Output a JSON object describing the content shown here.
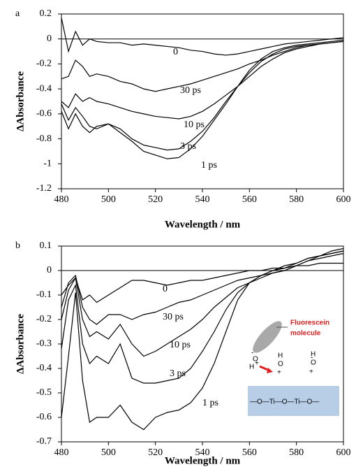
{
  "chart_data": [
    {
      "type": "line",
      "panel_label": "a",
      "x_label": "Wavelength / nm",
      "y_label": "ΔAbsorbance",
      "xlim": [
        480,
        600
      ],
      "xticks": [
        480,
        500,
        520,
        540,
        560,
        580,
        600
      ],
      "ylim": [
        -1.2,
        0.2
      ],
      "yticks": [
        0.2,
        0,
        -0.2,
        -0.4,
        -0.6,
        -0.8,
        -1,
        -1.2
      ],
      "x": [
        480,
        483,
        486,
        489,
        492,
        495,
        500,
        505,
        510,
        515,
        520,
        525,
        530,
        535,
        540,
        545,
        550,
        555,
        560,
        565,
        570,
        575,
        580,
        585,
        590,
        595,
        600
      ],
      "series": [
        {
          "name": "0",
          "color": "#000000",
          "values": [
            0.17,
            -0.1,
            0.06,
            -0.05,
            0,
            -0.02,
            -0.03,
            -0.03,
            -0.05,
            -0.04,
            -0.05,
            -0.06,
            -0.07,
            -0.09,
            -0.1,
            -0.12,
            -0.13,
            -0.12,
            -0.1,
            -0.08,
            -0.06,
            -0.04,
            -0.03,
            -0.02,
            -0.01,
            0,
            0.01
          ]
        },
        {
          "name": "30 ps",
          "color": "#000000",
          "values": [
            -0.32,
            -0.3,
            -0.17,
            -0.22,
            -0.3,
            -0.28,
            -0.3,
            -0.34,
            -0.36,
            -0.4,
            -0.42,
            -0.4,
            -0.38,
            -0.36,
            -0.33,
            -0.3,
            -0.27,
            -0.24,
            -0.2,
            -0.17,
            -0.13,
            -0.1,
            -0.07,
            -0.05,
            -0.04,
            -0.03,
            -0.02
          ]
        },
        {
          "name": "10 ps",
          "color": "#000000",
          "values": [
            -0.5,
            -0.55,
            -0.44,
            -0.5,
            -0.47,
            -0.5,
            -0.52,
            -0.55,
            -0.58,
            -0.6,
            -0.62,
            -0.63,
            -0.64,
            -0.62,
            -0.58,
            -0.52,
            -0.45,
            -0.38,
            -0.3,
            -0.22,
            -0.16,
            -0.11,
            -0.08,
            -0.06,
            -0.04,
            -0.03,
            -0.02
          ]
        },
        {
          "name": "3 ps",
          "color": "#000000",
          "values": [
            -0.52,
            -0.65,
            -0.55,
            -0.62,
            -0.7,
            -0.72,
            -0.68,
            -0.72,
            -0.8,
            -0.85,
            -0.87,
            -0.89,
            -0.88,
            -0.82,
            -0.74,
            -0.63,
            -0.5,
            -0.38,
            -0.27,
            -0.18,
            -0.12,
            -0.08,
            -0.06,
            -0.05,
            -0.04,
            -0.03,
            -0.02
          ]
        },
        {
          "name": "1 ps",
          "color": "#000000",
          "values": [
            -0.58,
            -0.72,
            -0.6,
            -0.7,
            -0.75,
            -0.7,
            -0.68,
            -0.75,
            -0.82,
            -0.9,
            -0.93,
            -0.96,
            -0.95,
            -0.88,
            -0.78,
            -0.65,
            -0.52,
            -0.38,
            -0.25,
            -0.16,
            -0.1,
            -0.07,
            -0.05,
            -0.04,
            -0.03,
            -0.02,
            -0.01
          ]
        }
      ]
    },
    {
      "type": "line",
      "panel_label": "b",
      "x_label": "Wavelength / nm",
      "y_label": "ΔAbsorbance",
      "xlim": [
        480,
        600
      ],
      "xticks": [
        480,
        500,
        520,
        540,
        560,
        580,
        600
      ],
      "ylim": [
        -0.7,
        0.1
      ],
      "yticks": [
        0.1,
        0,
        -0.1,
        -0.2,
        -0.3,
        -0.4,
        -0.5,
        -0.6,
        -0.7
      ],
      "x": [
        480,
        483,
        486,
        489,
        492,
        495,
        500,
        505,
        510,
        515,
        520,
        525,
        530,
        535,
        540,
        545,
        550,
        555,
        560,
        565,
        570,
        575,
        580,
        585,
        590,
        595,
        600
      ],
      "series": [
        {
          "name": "0",
          "color": "#000000",
          "values": [
            -0.1,
            -0.06,
            -0.03,
            -0.12,
            -0.1,
            -0.13,
            -0.1,
            -0.07,
            -0.04,
            -0.04,
            -0.05,
            -0.06,
            -0.05,
            -0.04,
            -0.04,
            -0.03,
            -0.02,
            -0.01,
            0,
            0,
            0.01,
            0.01,
            0.02,
            0.02,
            0.03,
            0.03,
            0.03
          ]
        },
        {
          "name": "30 ps",
          "color": "#000000",
          "values": [
            -0.15,
            -0.05,
            -0.02,
            -0.15,
            -0.2,
            -0.22,
            -0.18,
            -0.18,
            -0.2,
            -0.18,
            -0.17,
            -0.15,
            -0.13,
            -0.12,
            -0.1,
            -0.08,
            -0.06,
            -0.04,
            -0.03,
            -0.02,
            -0.01,
            0,
            0.02,
            0.04,
            0.05,
            0.06,
            0.07
          ]
        },
        {
          "name": "10 ps",
          "color": "#000000",
          "values": [
            -0.2,
            -0.08,
            -0.03,
            -0.2,
            -0.27,
            -0.25,
            -0.28,
            -0.22,
            -0.3,
            -0.35,
            -0.33,
            -0.3,
            -0.27,
            -0.24,
            -0.2,
            -0.15,
            -0.11,
            -0.07,
            -0.05,
            -0.03,
            -0.01,
            0,
            0.02,
            0.04,
            0.06,
            0.08,
            0.09
          ]
        },
        {
          "name": "3 ps",
          "color": "#000000",
          "values": [
            -0.32,
            -0.12,
            -0.06,
            -0.3,
            -0.38,
            -0.35,
            -0.38,
            -0.3,
            -0.44,
            -0.46,
            -0.46,
            -0.45,
            -0.44,
            -0.4,
            -0.33,
            -0.25,
            -0.16,
            -0.09,
            -0.05,
            -0.02,
            0,
            0.01,
            0.03,
            0.05,
            0.06,
            0.07,
            0.08
          ]
        },
        {
          "name": "1 ps",
          "color": "#000000",
          "values": [
            -0.6,
            -0.35,
            -0.09,
            -0.45,
            -0.62,
            -0.6,
            -0.6,
            -0.55,
            -0.62,
            -0.65,
            -0.6,
            -0.58,
            -0.57,
            -0.54,
            -0.48,
            -0.38,
            -0.25,
            -0.12,
            -0.05,
            -0.02,
            0,
            0.02,
            0.03,
            0.05,
            0.06,
            0.07,
            0.08
          ]
        }
      ]
    }
  ],
  "inset": {
    "labels": [
      "Fluorescein",
      "molecule",
      "-",
      "O",
      "H",
      "+",
      "H",
      "O",
      "+",
      "H",
      "O",
      "-",
      "+",
      "—O—Ti—O—Ti—O—"
    ]
  }
}
